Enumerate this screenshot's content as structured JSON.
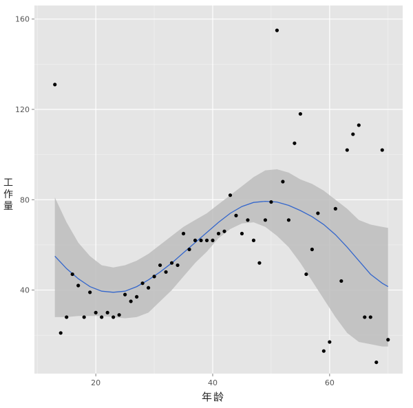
{
  "chart_data": {
    "type": "scatter",
    "title": "",
    "xlabel": "年龄",
    "ylabel": "工作量",
    "xlim": [
      9.5,
      72.5
    ],
    "ylim": [
      3,
      166
    ],
    "x_ticks": [
      20,
      40,
      60
    ],
    "y_ticks": [
      40,
      80,
      120,
      160
    ],
    "grid": true,
    "colors": {
      "panel": "#e5e5e5",
      "grid_major": "#ffffff",
      "points": "#000000",
      "smooth_line": "#3366cc",
      "confidence_band": "#bdbdbd"
    },
    "points": [
      {
        "x": 13,
        "y": 131
      },
      {
        "x": 14,
        "y": 21
      },
      {
        "x": 15,
        "y": 28
      },
      {
        "x": 16,
        "y": 47
      },
      {
        "x": 17,
        "y": 42
      },
      {
        "x": 18,
        "y": 28
      },
      {
        "x": 19,
        "y": 39
      },
      {
        "x": 20,
        "y": 30
      },
      {
        "x": 21,
        "y": 28
      },
      {
        "x": 22,
        "y": 30
      },
      {
        "x": 23,
        "y": 28
      },
      {
        "x": 24,
        "y": 29
      },
      {
        "x": 25,
        "y": 38
      },
      {
        "x": 26,
        "y": 35
      },
      {
        "x": 27,
        "y": 37
      },
      {
        "x": 28,
        "y": 43
      },
      {
        "x": 29,
        "y": 41
      },
      {
        "x": 30,
        "y": 46
      },
      {
        "x": 31,
        "y": 51
      },
      {
        "x": 32,
        "y": 48
      },
      {
        "x": 33,
        "y": 52
      },
      {
        "x": 34,
        "y": 51
      },
      {
        "x": 35,
        "y": 65
      },
      {
        "x": 36,
        "y": 58
      },
      {
        "x": 37,
        "y": 62
      },
      {
        "x": 38,
        "y": 62
      },
      {
        "x": 39,
        "y": 62
      },
      {
        "x": 40,
        "y": 62
      },
      {
        "x": 41,
        "y": 65
      },
      {
        "x": 42,
        "y": 66
      },
      {
        "x": 43,
        "y": 82
      },
      {
        "x": 44,
        "y": 73
      },
      {
        "x": 45,
        "y": 65
      },
      {
        "x": 46,
        "y": 71
      },
      {
        "x": 47,
        "y": 62
      },
      {
        "x": 48,
        "y": 52
      },
      {
        "x": 49,
        "y": 71
      },
      {
        "x": 50,
        "y": 79
      },
      {
        "x": 51,
        "y": 155
      },
      {
        "x": 52,
        "y": 88
      },
      {
        "x": 53,
        "y": 71
      },
      {
        "x": 54,
        "y": 105
      },
      {
        "x": 55,
        "y": 118
      },
      {
        "x": 56,
        "y": 47
      },
      {
        "x": 57,
        "y": 58
      },
      {
        "x": 58,
        "y": 74
      },
      {
        "x": 59,
        "y": 13
      },
      {
        "x": 60,
        "y": 17
      },
      {
        "x": 61,
        "y": 76
      },
      {
        "x": 62,
        "y": 44
      },
      {
        "x": 63,
        "y": 102
      },
      {
        "x": 64,
        "y": 109
      },
      {
        "x": 65,
        "y": 113
      },
      {
        "x": 66,
        "y": 28
      },
      {
        "x": 67,
        "y": 28
      },
      {
        "x": 68,
        "y": 8
      },
      {
        "x": 69,
        "y": 102
      },
      {
        "x": 70,
        "y": 18
      }
    ],
    "smooth": {
      "x": [
        13,
        15,
        17,
        19,
        21,
        23,
        25,
        27,
        29,
        31,
        33,
        35,
        37,
        39,
        41,
        43,
        45,
        47,
        49,
        51,
        53,
        55,
        57,
        59,
        61,
        63,
        65,
        67,
        69,
        70
      ],
      "y": [
        55,
        49.5,
        45,
        41.5,
        39.5,
        39,
        39.5,
        41.5,
        44.5,
        48,
        52,
        56.5,
        61,
        65.5,
        70,
        74,
        77,
        78.8,
        79.3,
        79,
        77.5,
        75.2,
        72.5,
        69,
        64.5,
        59,
        53,
        47,
        43,
        41.5
      ],
      "lower": [
        28,
        28,
        28.5,
        28.5,
        28.5,
        28,
        27.5,
        28,
        30,
        35,
        40,
        46,
        52,
        57,
        63,
        67,
        69.5,
        70,
        68,
        64,
        59,
        52,
        44,
        36,
        28,
        21,
        17,
        16,
        15,
        15
      ],
      "upper": [
        81,
        70,
        61,
        55,
        51,
        50,
        51,
        53,
        56,
        60,
        64,
        68,
        71,
        74,
        78,
        82,
        86,
        90,
        93,
        93.5,
        92,
        89,
        87,
        84,
        80,
        76,
        71,
        69,
        68,
        67.5
      ]
    }
  }
}
